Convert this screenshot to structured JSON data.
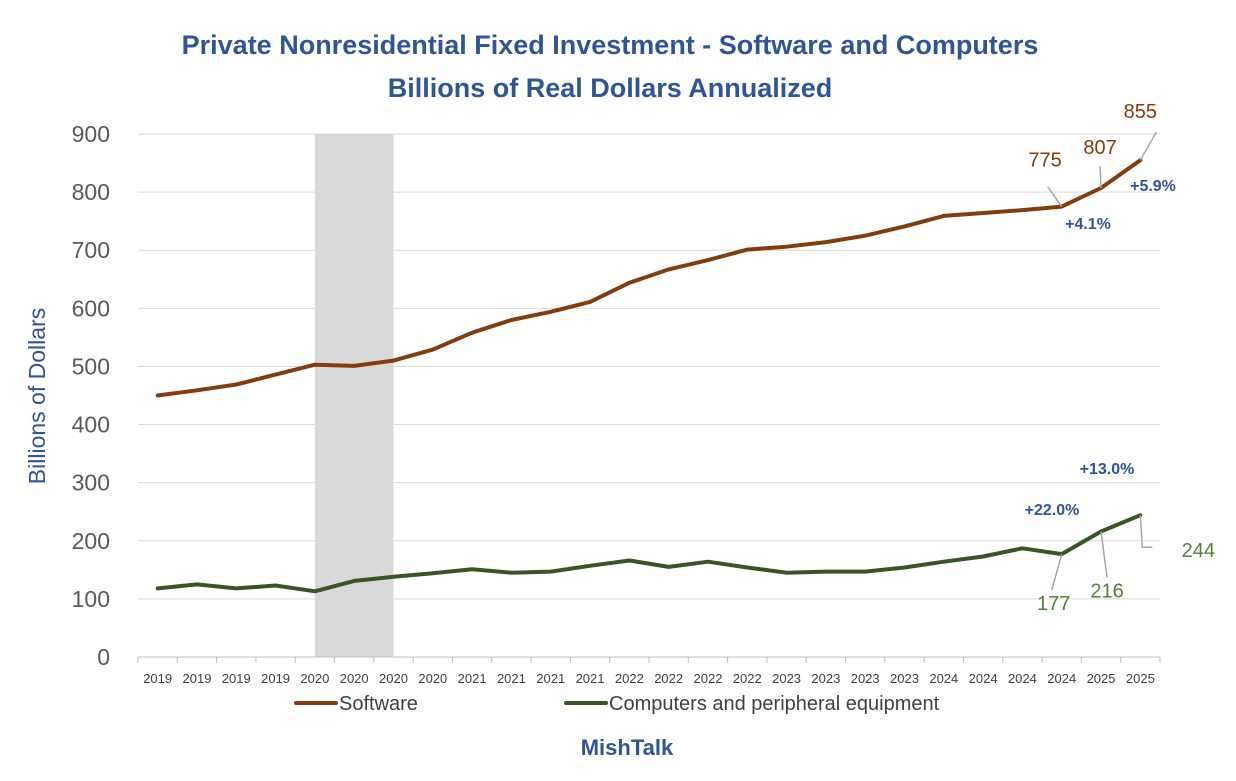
{
  "chart_data": {
    "type": "line",
    "title": "Private Nonresidential Fixed Investment - Software and Computers",
    "subtitle": "Billions of Real Dollars Annualized",
    "ylabel": "Billions of Dollars",
    "xlabel": "",
    "ylim": [
      0,
      900
    ],
    "yticks": [
      0,
      100,
      200,
      300,
      400,
      500,
      600,
      700,
      800,
      900
    ],
    "grid": "horizontal",
    "legend_position": "bottom",
    "categories": [
      "2019",
      "2019",
      "2019",
      "2019",
      "2020",
      "2020",
      "2020",
      "2020",
      "2021",
      "2021",
      "2021",
      "2021",
      "2022",
      "2022",
      "2022",
      "2022",
      "2023",
      "2023",
      "2023",
      "2023",
      "2024",
      "2024",
      "2024",
      "2024",
      "2025",
      "2025"
    ],
    "recession_shading": {
      "from_index": 4.5,
      "to_index": 6.5
    },
    "series": [
      {
        "name": "Software",
        "color": "#843c0c",
        "values": [
          450,
          459,
          469,
          486,
          503,
          501,
          510,
          529,
          558,
          580,
          594,
          611,
          644,
          667,
          683,
          701,
          706,
          714,
          725,
          741,
          759,
          764,
          769,
          775,
          807,
          855
        ]
      },
      {
        "name": "Computers and peripheral equipment",
        "color": "#375623",
        "values": [
          118,
          125,
          118,
          123,
          113,
          131,
          138,
          144,
          151,
          145,
          147,
          157,
          166,
          155,
          164,
          154,
          145,
          147,
          147,
          154,
          164,
          173,
          187,
          177,
          216,
          244
        ]
      }
    ],
    "annotations": [
      {
        "series": 0,
        "index": 23,
        "text": "775",
        "kind": "value"
      },
      {
        "series": 0,
        "index": 24,
        "text": "807",
        "kind": "value"
      },
      {
        "series": 0,
        "index": 25,
        "text": "855",
        "kind": "value"
      },
      {
        "series": 0,
        "text": "+4.1%",
        "kind": "pct"
      },
      {
        "series": 0,
        "text": "+5.9%",
        "kind": "pct"
      },
      {
        "series": 1,
        "index": 23,
        "text": "177",
        "kind": "value"
      },
      {
        "series": 1,
        "index": 24,
        "text": "216",
        "kind": "value"
      },
      {
        "series": 1,
        "index": 25,
        "text": "244",
        "kind": "value"
      },
      {
        "series": 1,
        "text": "+22.0%",
        "kind": "pct"
      },
      {
        "series": 1,
        "text": "+13.0%",
        "kind": "pct"
      }
    ],
    "source": "MishTalk"
  }
}
